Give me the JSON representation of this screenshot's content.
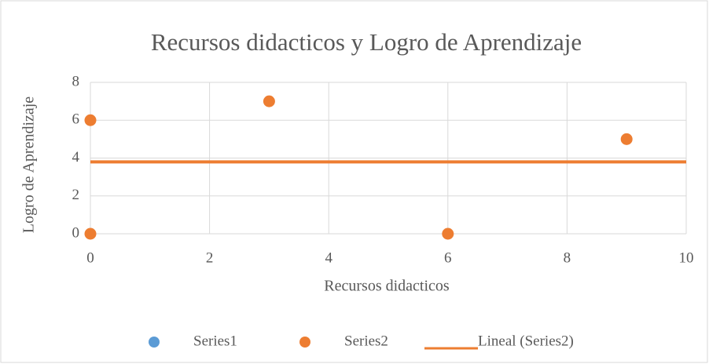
{
  "chart_data": {
    "type": "scatter",
    "title": "Recursos didacticos y Logro de Aprendizaje",
    "xlabel": "Recursos didacticos",
    "ylabel": "Logro de Aprendizaje",
    "xlim": [
      0,
      10
    ],
    "xticks": [
      0,
      2,
      4,
      6,
      8,
      10
    ],
    "ylim": [
      0,
      8
    ],
    "yticks": [
      0,
      2,
      4,
      6,
      8
    ],
    "grid": true,
    "legend": "bottom",
    "series": [
      {
        "name": "Series1",
        "color": "#5b9bd5",
        "kind": "points",
        "x": [],
        "values": []
      },
      {
        "name": "Series2",
        "color": "#ed7d31",
        "kind": "points",
        "x": [
          0,
          0,
          3,
          6,
          9
        ],
        "values": [
          6,
          0,
          7,
          0,
          5
        ]
      },
      {
        "name": "Lineal (Series2)",
        "color": "#ed7d31",
        "kind": "line",
        "x": [
          0,
          10
        ],
        "values": [
          3.8,
          3.8
        ]
      }
    ]
  }
}
